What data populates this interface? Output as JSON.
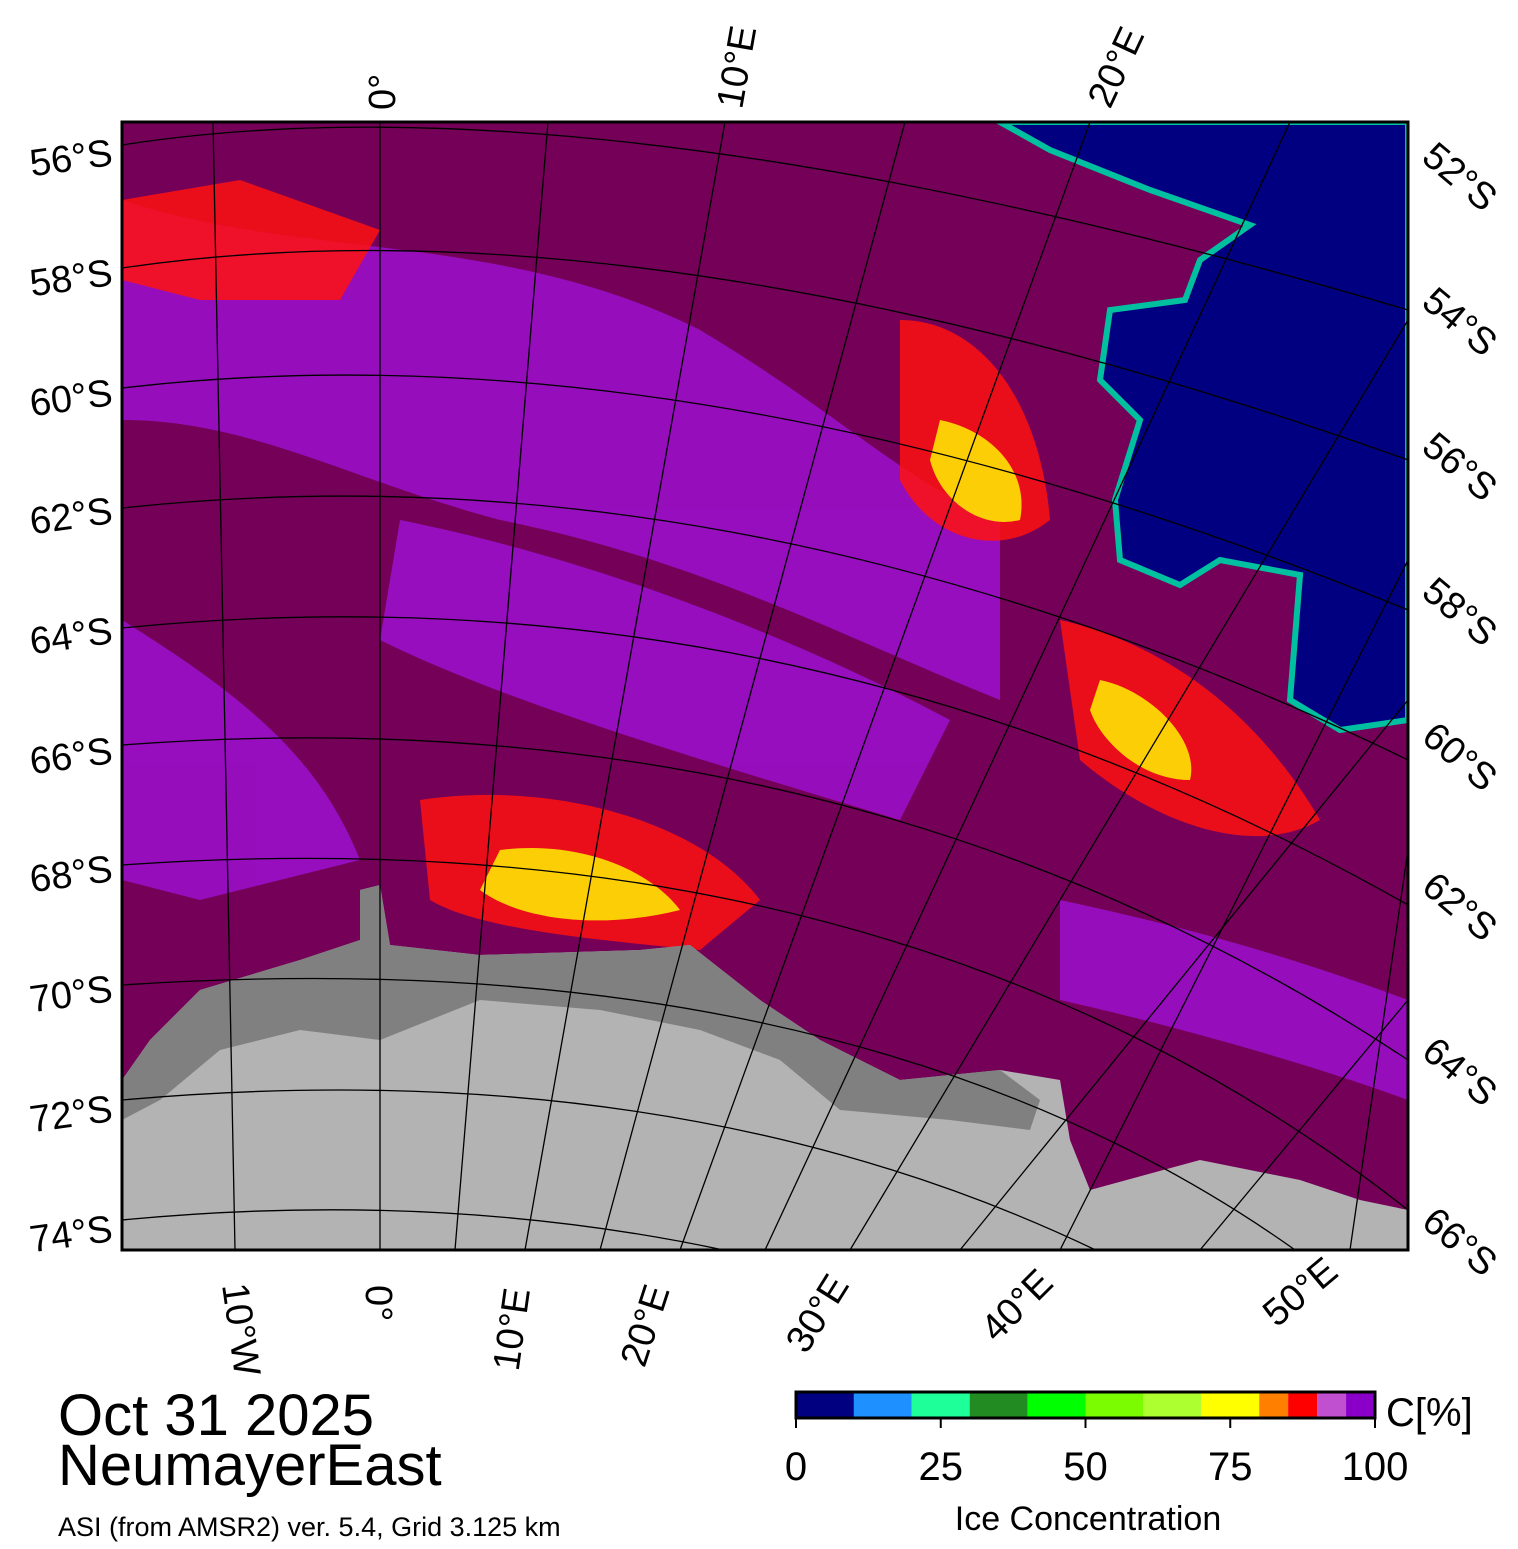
{
  "map": {
    "lat_labels_left": [
      "56°S",
      "58°S",
      "60°S",
      "62°S",
      "64°S",
      "66°S",
      "68°S",
      "70°S",
      "72°S",
      "74°S"
    ],
    "lat_labels_right": [
      "52°S",
      "54°S",
      "56°S",
      "58°S",
      "60°S",
      "62°S",
      "64°S",
      "66°S"
    ],
    "lon_labels_top": [
      "0°",
      "10°E",
      "20°E"
    ],
    "lon_labels_bottom": [
      "10°W",
      "0°",
      "10°E",
      "20°E",
      "30°E",
      "40°E",
      "50°E"
    ]
  },
  "caption": {
    "date": "Oct 31 2025",
    "region": "NeumayerEast",
    "source": "ASI (from AMSR2) ver. 5.4,  Grid 3.125 km"
  },
  "colorbar": {
    "label": "Ice Concentration",
    "unit": "C[%]",
    "lim": [
      0,
      100
    ],
    "ticks": [
      0,
      25,
      50,
      75,
      100
    ],
    "bounds": [
      0,
      10,
      20,
      30,
      40,
      50,
      60,
      70,
      80,
      85,
      90,
      95,
      100
    ],
    "colors": [
      "#000080",
      "#1e90ff",
      "#1eff9a",
      "#228b22",
      "#00ff00",
      "#7cfc00",
      "#adff2f",
      "#ffff00",
      "#ff7f00",
      "#ff0000",
      "#c050d0",
      "#8a00c8"
    ]
  }
}
